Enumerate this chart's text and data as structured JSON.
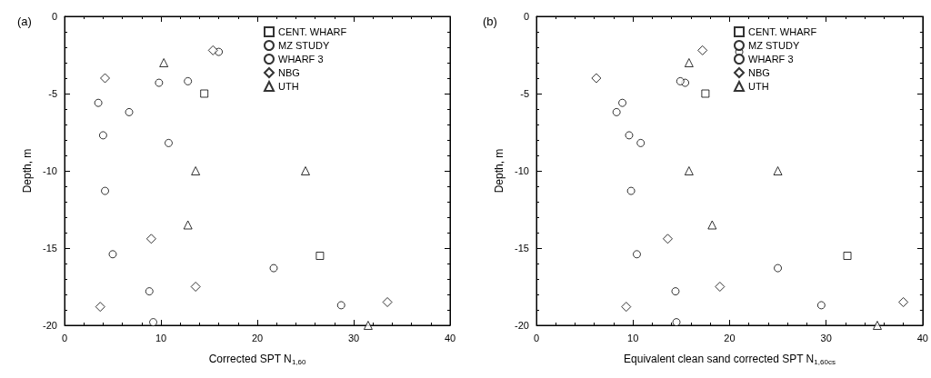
{
  "chart_data": [
    {
      "type": "scatter",
      "title": "(a)",
      "xlabel": "Corrected SPT N$_{1,60}$",
      "ylabel": "Depth, m",
      "xlim": [
        0,
        40
      ],
      "xticks": [
        0,
        10,
        20,
        30,
        40
      ],
      "ylim": [
        -20,
        0
      ],
      "yticks": [
        -20,
        -15,
        -10,
        -5,
        0
      ],
      "grid": false,
      "legend": "top right",
      "series": [
        {
          "name": "CENT. WHARF",
          "marker": "square",
          "color": "#000000",
          "x": [
            14.5,
            26.5
          ],
          "values": [
            -5,
            -15.5
          ]
        },
        {
          "name": "MZ STUDY",
          "marker": "circle",
          "color": "#000000",
          "x": [
            9.8,
            16,
            21.7,
            28.7
          ],
          "values": [
            -4.3,
            -2.3,
            -16.3,
            -18.7
          ]
        },
        {
          "name": "WHARF 3",
          "marker": "circle",
          "color": "#000000",
          "x": [
            12.8,
            3.5,
            6.7,
            4,
            10.8,
            4.2,
            5,
            8.8,
            9.2
          ],
          "values": [
            -4.2,
            -5.6,
            -6.2,
            -7.7,
            -8.2,
            -11.3,
            -15.4,
            -17.8,
            -19.8
          ]
        },
        {
          "name": "NBG",
          "marker": "diamond",
          "color": "#000000",
          "x": [
            15.4,
            4.2,
            9,
            13.6,
            3.7,
            33.5
          ],
          "values": [
            -2.2,
            -4,
            -14.4,
            -17.5,
            -18.8,
            -18.5
          ]
        },
        {
          "name": "UTH",
          "marker": "triangle",
          "color": "#000000",
          "x": [
            10.3,
            13.6,
            12.8,
            25,
            31.5
          ],
          "values": [
            -3,
            -10,
            -13.5,
            -10,
            -20
          ]
        }
      ]
    },
    {
      "type": "scatter",
      "title": "(b)",
      "xlabel": "Equivalent clean sand corrected SPT N$_{1,60cs}$",
      "ylabel": "Depth, m",
      "xlim": [
        0,
        40
      ],
      "xticks": [
        0,
        10,
        20,
        30,
        40
      ],
      "ylim": [
        -20,
        0
      ],
      "yticks": [
        -20,
        -15,
        -10,
        -5,
        0
      ],
      "grid": false,
      "legend": "top right",
      "series": [
        {
          "name": "CENT. WHARF",
          "marker": "square",
          "color": "#000000",
          "x": [
            17.5,
            32.2
          ],
          "values": [
            -5,
            -15.5
          ]
        },
        {
          "name": "MZ STUDY",
          "marker": "circle",
          "color": "#000000",
          "x": [
            15.4,
            21,
            25,
            29.5
          ],
          "values": [
            -4.3,
            -2.3,
            -16.3,
            -18.7
          ]
        },
        {
          "name": "WHARF 3",
          "marker": "circle",
          "color": "#000000",
          "x": [
            14.9,
            8.9,
            8.3,
            9.6,
            10.8,
            9.8,
            10.4,
            14.4,
            14.5
          ],
          "values": [
            -4.2,
            -5.6,
            -6.2,
            -7.7,
            -8.2,
            -11.3,
            -15.4,
            -17.8,
            -19.8
          ]
        },
        {
          "name": "NBG",
          "marker": "diamond",
          "color": "#000000",
          "x": [
            17.2,
            6.2,
            13.6,
            19,
            9.3,
            38
          ],
          "values": [
            -2.2,
            -4,
            -14.4,
            -17.5,
            -18.8,
            -18.5
          ]
        },
        {
          "name": "UTH",
          "marker": "triangle",
          "color": "#000000",
          "x": [
            15.8,
            15.8,
            18.2,
            25,
            35.3
          ],
          "values": [
            -3,
            -10,
            -13.5,
            -10,
            -20
          ]
        }
      ]
    }
  ]
}
